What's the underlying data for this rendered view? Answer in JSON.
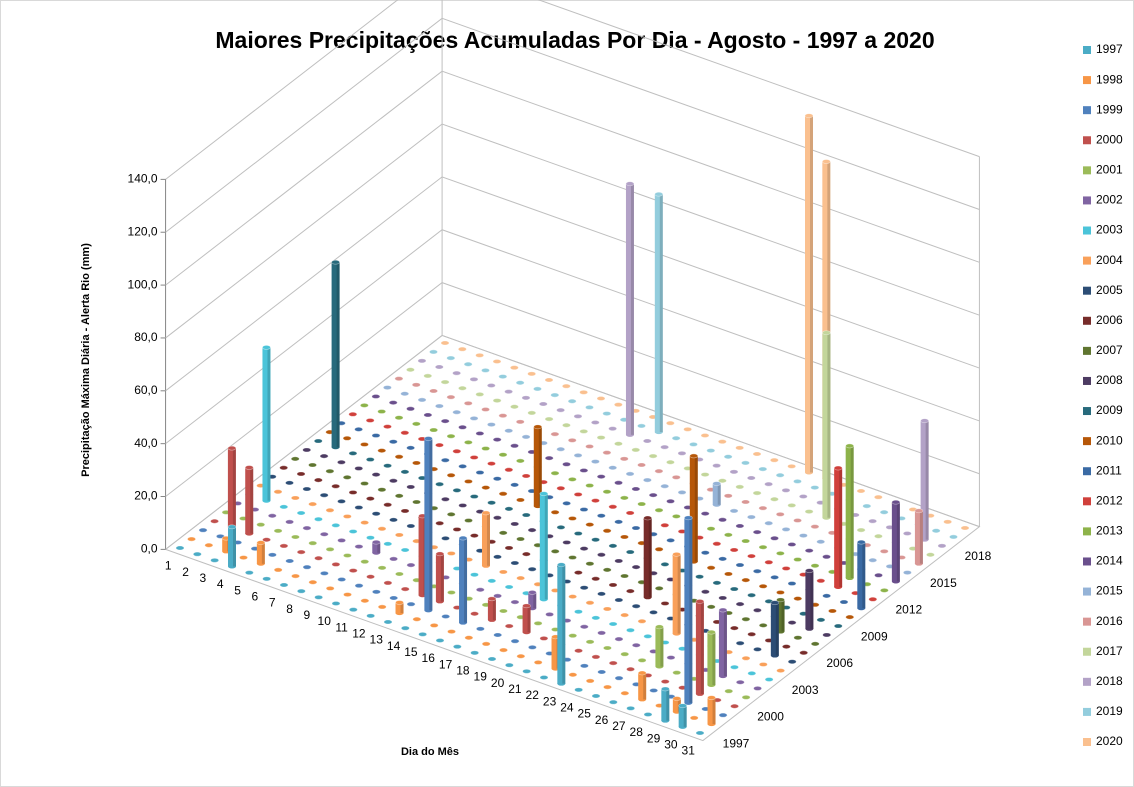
{
  "chart_data": {
    "type": "bar3d",
    "title": "Maiores Precipitações Acumuladas Por Dia - Agosto - 1997 a 2020",
    "y_axis_label": "Precipitação Máxima Diária - Alerta Rio (mm)",
    "x_axis_label": "Dia do Mês",
    "categories": [
      "1",
      "2",
      "3",
      "4",
      "5",
      "6",
      "7",
      "8",
      "9",
      "10",
      "11",
      "12",
      "13",
      "14",
      "15",
      "16",
      "17",
      "18",
      "19",
      "20",
      "21",
      "22",
      "23",
      "24",
      "25",
      "26",
      "27",
      "28",
      "29",
      "30",
      "31"
    ],
    "ylim": [
      0,
      140
    ],
    "yticks": [
      {
        "value": 0,
        "label": "0,0"
      },
      {
        "value": 20,
        "label": "20,0"
      },
      {
        "value": 40,
        "label": "40,0"
      },
      {
        "value": 60,
        "label": "60,0"
      },
      {
        "value": 80,
        "label": "80,0"
      },
      {
        "value": 100,
        "label": "100,0"
      },
      {
        "value": 120,
        "label": "120,0"
      },
      {
        "value": 140,
        "label": "140,0"
      }
    ],
    "grid": true,
    "legend": "right",
    "series": [
      {
        "name": "1997",
        "color": "#4bacc6",
        "values": [
          0,
          0,
          0,
          15,
          0,
          0,
          0,
          0,
          0,
          0,
          0,
          0,
          0,
          0,
          0,
          0,
          0,
          0,
          0,
          0,
          0,
          0,
          45,
          0,
          0,
          0,
          0,
          0,
          12,
          8,
          0
        ]
      },
      {
        "name": "1998",
        "color": "#f79646",
        "values": [
          0,
          0,
          5,
          0,
          8,
          0,
          0,
          0,
          0,
          0,
          0,
          0,
          4,
          0,
          0,
          0,
          0,
          0,
          0,
          0,
          0,
          12,
          0,
          0,
          0,
          0,
          10,
          0,
          5,
          0,
          10
        ]
      },
      {
        "name": "1999",
        "color": "#4f81bd",
        "values": [
          0,
          0,
          0,
          0,
          0,
          0,
          0,
          0,
          0,
          0,
          0,
          0,
          0,
          65,
          0,
          32,
          0,
          0,
          0,
          0,
          0,
          0,
          0,
          0,
          0,
          0,
          0,
          0,
          70,
          0,
          0
        ]
      },
      {
        "name": "2000",
        "color": "#c0504d",
        "values": [
          0,
          30,
          25,
          0,
          0,
          0,
          0,
          0,
          0,
          0,
          0,
          0,
          30,
          18,
          0,
          0,
          8,
          0,
          10,
          0,
          0,
          0,
          0,
          0,
          0,
          0,
          0,
          0,
          35,
          0,
          0
        ]
      },
      {
        "name": "2001",
        "color": "#9bbb59",
        "values": [
          0,
          0,
          0,
          0,
          0,
          0,
          0,
          0,
          0,
          0,
          0,
          0,
          0,
          0,
          0,
          0,
          0,
          0,
          0,
          0,
          0,
          0,
          0,
          0,
          0,
          15,
          0,
          0,
          20,
          0,
          0
        ]
      },
      {
        "name": "2002",
        "color": "#8064a2",
        "values": [
          0,
          0,
          0,
          0,
          0,
          0,
          0,
          0,
          4,
          0,
          0,
          0,
          0,
          0,
          0,
          0,
          0,
          6,
          0,
          0,
          0,
          0,
          0,
          0,
          0,
          0,
          0,
          0,
          25,
          0,
          0
        ]
      },
      {
        "name": "2003",
        "color": "#4bc4d9",
        "values": [
          0,
          58,
          0,
          0,
          0,
          0,
          0,
          0,
          0,
          0,
          0,
          0,
          0,
          0,
          0,
          0,
          0,
          40,
          0,
          0,
          0,
          0,
          0,
          0,
          0,
          0,
          0,
          0,
          0,
          0,
          0
        ]
      },
      {
        "name": "2004",
        "color": "#f9a05a",
        "values": [
          0,
          0,
          0,
          0,
          0,
          0,
          0,
          0,
          0,
          0,
          0,
          0,
          0,
          20,
          0,
          0,
          0,
          0,
          0,
          0,
          0,
          0,
          0,
          0,
          30,
          0,
          0,
          0,
          0,
          0,
          0
        ]
      },
      {
        "name": "2005",
        "color": "#2c4d75",
        "values": [
          0,
          0,
          0,
          0,
          0,
          0,
          0,
          0,
          0,
          0,
          0,
          0,
          0,
          0,
          0,
          0,
          0,
          0,
          0,
          0,
          0,
          0,
          0,
          0,
          0,
          0,
          0,
          0,
          0,
          20,
          0
        ]
      },
      {
        "name": "2006",
        "color": "#772c2a",
        "values": [
          0,
          0,
          0,
          0,
          0,
          0,
          0,
          0,
          0,
          0,
          0,
          0,
          0,
          0,
          0,
          0,
          0,
          0,
          0,
          0,
          0,
          30,
          0,
          0,
          0,
          0,
          0,
          0,
          0,
          0,
          0
        ]
      },
      {
        "name": "2007",
        "color": "#5f7530",
        "values": [
          0,
          0,
          0,
          0,
          0,
          0,
          0,
          0,
          0,
          0,
          0,
          0,
          0,
          0,
          0,
          0,
          0,
          0,
          0,
          0,
          0,
          0,
          0,
          0,
          0,
          0,
          0,
          0,
          12,
          0,
          0
        ]
      },
      {
        "name": "2008",
        "color": "#4d3b62",
        "values": [
          0,
          0,
          0,
          0,
          0,
          0,
          0,
          0,
          0,
          0,
          0,
          0,
          0,
          0,
          0,
          0,
          0,
          0,
          0,
          0,
          0,
          0,
          0,
          0,
          0,
          0,
          0,
          0,
          0,
          22,
          0
        ]
      },
      {
        "name": "2009",
        "color": "#276a7c",
        "values": [
          0,
          70,
          0,
          0,
          0,
          0,
          0,
          0,
          0,
          0,
          0,
          0,
          0,
          0,
          0,
          0,
          0,
          0,
          0,
          0,
          0,
          0,
          0,
          0,
          0,
          0,
          0,
          0,
          0,
          0,
          0
        ]
      },
      {
        "name": "2010",
        "color": "#b65708",
        "values": [
          0,
          0,
          0,
          0,
          0,
          0,
          0,
          0,
          0,
          0,
          0,
          0,
          30,
          0,
          0,
          0,
          0,
          0,
          0,
          0,
          0,
          40,
          0,
          0,
          0,
          0,
          0,
          0,
          0,
          0,
          0
        ]
      },
      {
        "name": "2011",
        "color": "#3a6aa4",
        "values": [
          0,
          0,
          0,
          0,
          0,
          0,
          0,
          0,
          0,
          0,
          0,
          0,
          0,
          0,
          0,
          0,
          0,
          0,
          0,
          0,
          0,
          0,
          0,
          0,
          0,
          0,
          0,
          0,
          0,
          0,
          25
        ]
      },
      {
        "name": "2012",
        "color": "#d0403b",
        "values": [
          0,
          0,
          0,
          0,
          0,
          0,
          0,
          0,
          0,
          0,
          0,
          0,
          0,
          0,
          0,
          0,
          0,
          0,
          0,
          0,
          0,
          0,
          0,
          0,
          0,
          0,
          0,
          0,
          45,
          0,
          0
        ]
      },
      {
        "name": "2013",
        "color": "#8db34a",
        "values": [
          0,
          0,
          0,
          0,
          0,
          0,
          0,
          0,
          0,
          0,
          0,
          0,
          0,
          0,
          0,
          0,
          0,
          0,
          0,
          0,
          0,
          0,
          0,
          0,
          0,
          0,
          0,
          0,
          50,
          0,
          0
        ]
      },
      {
        "name": "2014",
        "color": "#6a4f8c",
        "values": [
          0,
          0,
          0,
          0,
          0,
          0,
          0,
          0,
          0,
          0,
          0,
          0,
          0,
          0,
          0,
          0,
          0,
          0,
          0,
          0,
          0,
          0,
          0,
          0,
          0,
          0,
          0,
          0,
          0,
          0,
          30
        ]
      },
      {
        "name": "2015",
        "color": "#95b3d7",
        "values": [
          0,
          0,
          0,
          0,
          0,
          0,
          0,
          0,
          0,
          0,
          0,
          0,
          0,
          0,
          0,
          0,
          0,
          0,
          0,
          8,
          0,
          0,
          0,
          0,
          0,
          0,
          0,
          0,
          0,
          0,
          0
        ]
      },
      {
        "name": "2016",
        "color": "#d99694",
        "values": [
          0,
          0,
          0,
          0,
          0,
          0,
          0,
          0,
          0,
          0,
          0,
          0,
          0,
          0,
          0,
          0,
          0,
          0,
          0,
          0,
          0,
          0,
          0,
          0,
          0,
          0,
          0,
          0,
          0,
          0,
          20
        ]
      },
      {
        "name": "2017",
        "color": "#c3d69b",
        "values": [
          0,
          0,
          0,
          0,
          0,
          0,
          0,
          0,
          0,
          0,
          0,
          0,
          0,
          0,
          0,
          0,
          0,
          0,
          0,
          0,
          0,
          0,
          0,
          0,
          70,
          0,
          0,
          0,
          0,
          0,
          0
        ]
      },
      {
        "name": "2018",
        "color": "#b3a2c7",
        "values": [
          0,
          0,
          0,
          0,
          0,
          0,
          0,
          0,
          0,
          0,
          0,
          0,
          95,
          0,
          0,
          0,
          0,
          0,
          0,
          0,
          0,
          0,
          0,
          0,
          0,
          0,
          0,
          0,
          0,
          45,
          0
        ]
      },
      {
        "name": "2019",
        "color": "#93cddd",
        "values": [
          0,
          0,
          0,
          0,
          0,
          0,
          0,
          0,
          0,
          0,
          0,
          0,
          0,
          90,
          0,
          0,
          0,
          0,
          0,
          0,
          0,
          0,
          0,
          0,
          0,
          0,
          0,
          0,
          0,
          0,
          0
        ]
      },
      {
        "name": "2020",
        "color": "#fac08f",
        "values": [
          0,
          0,
          0,
          0,
          0,
          0,
          0,
          0,
          0,
          0,
          0,
          0,
          0,
          0,
          0,
          0,
          0,
          0,
          0,
          0,
          0,
          135,
          120,
          0,
          0,
          0,
          0,
          0,
          0,
          0,
          0
        ]
      }
    ]
  }
}
